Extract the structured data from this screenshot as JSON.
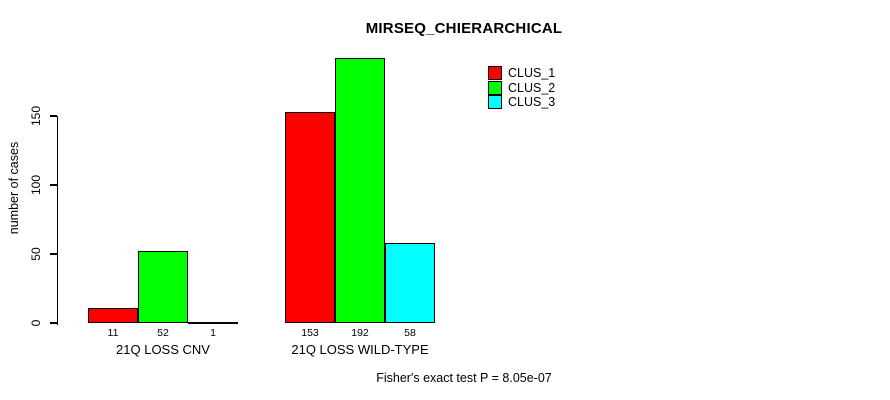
{
  "chart_data": {
    "type": "bar",
    "title": "MIRSEQ_CHIERARCHICAL",
    "ylabel": "number of cases",
    "xlabel": "",
    "categories": [
      "21Q LOSS CNV",
      "21Q LOSS WILD-TYPE"
    ],
    "series": [
      {
        "name": "CLUS_1",
        "color": "#ff0000",
        "values": [
          11,
          153
        ]
      },
      {
        "name": "CLUS_2",
        "color": "#00ff00",
        "values": [
          52,
          192
        ]
      },
      {
        "name": "CLUS_3",
        "color": "#00ffff",
        "values": [
          1,
          58
        ]
      }
    ],
    "yticks": [
      0,
      50,
      100,
      150
    ],
    "ylim": [
      0,
      192
    ],
    "grid": false,
    "legend_position": "top-right",
    "bar_border_color": "#000000",
    "background_color": "#ffffff",
    "footnote": "Fisher's exact test P = 8.05e-07"
  }
}
